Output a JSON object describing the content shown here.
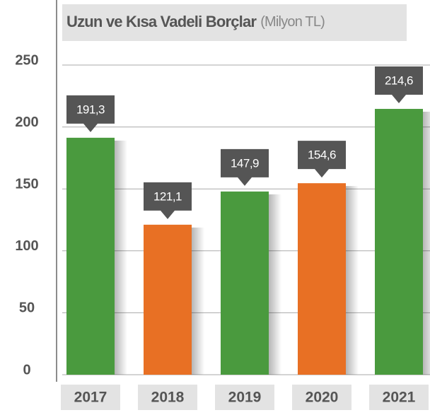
{
  "chart_data": {
    "type": "bar",
    "title": "Uzun ve Kısa Vadeli Borçlar",
    "subtitle": "(Milyon TL)",
    "categories": [
      "2017",
      "2018",
      "2019",
      "2020",
      "2021"
    ],
    "values": [
      191.3,
      121.1,
      147.9,
      154.6,
      214.6
    ],
    "value_labels": [
      "191,3",
      "121,1",
      "147,9",
      "154,6",
      "214,6"
    ],
    "colors": [
      "#4a9a3e",
      "#e87024",
      "#4a9a3e",
      "#e87024",
      "#4a9a3e"
    ],
    "ylim": [
      0,
      250
    ],
    "yticks": [
      0,
      50,
      100,
      150,
      200,
      250
    ],
    "grid": true
  }
}
